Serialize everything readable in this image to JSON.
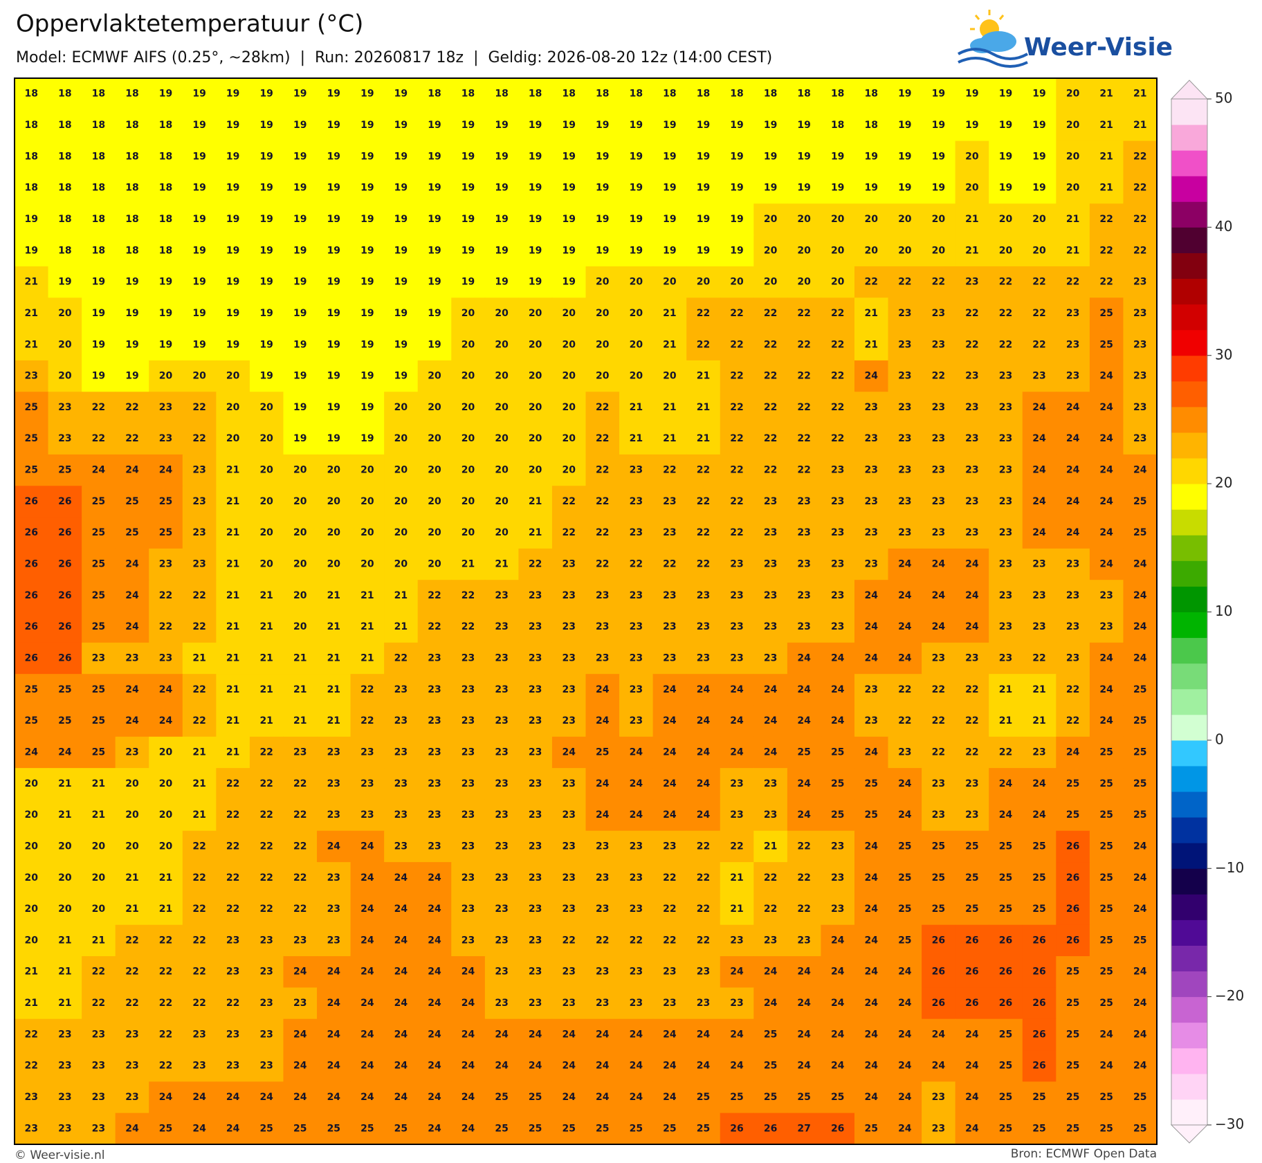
{
  "page": {
    "logo": "Weer-Visie",
    "credit": "© Weer-visie.nl",
    "source": "Bron: ECMWF Open Data"
  },
  "chart_data": {
    "type": "heatmap",
    "title": "Oppervlaktetemperatuur (°C)",
    "subtitle": "Model: ECMWF AIFS (0.25°, ~28km)  |  Run: 20260817 18z  |  Geldig: 2026-08-20 12z (14:00 CEST)",
    "values": [
      [
        18,
        18,
        18,
        18,
        19,
        19,
        19,
        19,
        19,
        19,
        19,
        19,
        18,
        18,
        18,
        18,
        18,
        18,
        18,
        18,
        18,
        18,
        18,
        18,
        18,
        18,
        19,
        19,
        19,
        19,
        19,
        20,
        21,
        21
      ],
      [
        18,
        18,
        18,
        18,
        18,
        19,
        19,
        19,
        19,
        19,
        19,
        19,
        19,
        19,
        19,
        19,
        19,
        19,
        19,
        19,
        19,
        19,
        19,
        19,
        18,
        18,
        19,
        19,
        19,
        19,
        19,
        20,
        21,
        21
      ],
      [
        18,
        18,
        18,
        18,
        18,
        19,
        19,
        19,
        19,
        19,
        19,
        19,
        19,
        19,
        19,
        19,
        19,
        19,
        19,
        19,
        19,
        19,
        19,
        19,
        19,
        19,
        19,
        19,
        20,
        19,
        19,
        20,
        21,
        22
      ],
      [
        18,
        18,
        18,
        18,
        18,
        19,
        19,
        19,
        19,
        19,
        19,
        19,
        19,
        19,
        19,
        19,
        19,
        19,
        19,
        19,
        19,
        19,
        19,
        19,
        19,
        19,
        19,
        19,
        20,
        19,
        19,
        20,
        21,
        22
      ],
      [
        19,
        18,
        18,
        18,
        18,
        19,
        19,
        19,
        19,
        19,
        19,
        19,
        19,
        19,
        19,
        19,
        19,
        19,
        19,
        19,
        19,
        19,
        20,
        20,
        20,
        20,
        20,
        20,
        21,
        20,
        20,
        21,
        22,
        22
      ],
      [
        19,
        18,
        18,
        18,
        18,
        19,
        19,
        19,
        19,
        19,
        19,
        19,
        19,
        19,
        19,
        19,
        19,
        19,
        19,
        19,
        19,
        19,
        20,
        20,
        20,
        20,
        20,
        20,
        21,
        20,
        20,
        21,
        22,
        22
      ],
      [
        21,
        19,
        19,
        19,
        19,
        19,
        19,
        19,
        19,
        19,
        19,
        19,
        19,
        19,
        19,
        19,
        19,
        20,
        20,
        20,
        20,
        20,
        20,
        20,
        20,
        22,
        22,
        22,
        23,
        22,
        22,
        22,
        22,
        23
      ],
      [
        21,
        20,
        19,
        19,
        19,
        19,
        19,
        19,
        19,
        19,
        19,
        19,
        19,
        20,
        20,
        20,
        20,
        20,
        20,
        21,
        22,
        22,
        22,
        22,
        22,
        21,
        23,
        23,
        22,
        22,
        22,
        23,
        25,
        23
      ],
      [
        21,
        20,
        19,
        19,
        19,
        19,
        19,
        19,
        19,
        19,
        19,
        19,
        19,
        20,
        20,
        20,
        20,
        20,
        20,
        21,
        22,
        22,
        22,
        22,
        22,
        21,
        23,
        23,
        22,
        22,
        22,
        23,
        25,
        23
      ],
      [
        23,
        20,
        19,
        19,
        20,
        20,
        20,
        19,
        19,
        19,
        19,
        19,
        20,
        20,
        20,
        20,
        20,
        20,
        20,
        20,
        21,
        22,
        22,
        22,
        22,
        24,
        23,
        22,
        23,
        23,
        23,
        23,
        24,
        23
      ],
      [
        25,
        23,
        22,
        22,
        23,
        22,
        20,
        20,
        19,
        19,
        19,
        20,
        20,
        20,
        20,
        20,
        20,
        22,
        21,
        21,
        21,
        22,
        22,
        22,
        22,
        23,
        23,
        23,
        23,
        23,
        24,
        24,
        24,
        23
      ],
      [
        25,
        23,
        22,
        22,
        23,
        22,
        20,
        20,
        19,
        19,
        19,
        20,
        20,
        20,
        20,
        20,
        20,
        22,
        21,
        21,
        21,
        22,
        22,
        22,
        22,
        23,
        23,
        23,
        23,
        23,
        24,
        24,
        24,
        23
      ],
      [
        25,
        25,
        24,
        24,
        24,
        23,
        21,
        20,
        20,
        20,
        20,
        20,
        20,
        20,
        20,
        20,
        20,
        22,
        23,
        22,
        22,
        22,
        22,
        22,
        23,
        23,
        23,
        23,
        23,
        23,
        24,
        24,
        24,
        24
      ],
      [
        26,
        26,
        25,
        25,
        25,
        23,
        21,
        20,
        20,
        20,
        20,
        20,
        20,
        20,
        20,
        21,
        22,
        22,
        23,
        23,
        22,
        22,
        23,
        23,
        23,
        23,
        23,
        23,
        23,
        23,
        24,
        24,
        24,
        25
      ],
      [
        26,
        26,
        25,
        25,
        25,
        23,
        21,
        20,
        20,
        20,
        20,
        20,
        20,
        20,
        20,
        21,
        22,
        22,
        23,
        23,
        22,
        22,
        23,
        23,
        23,
        23,
        23,
        23,
        23,
        23,
        24,
        24,
        24,
        25
      ],
      [
        26,
        26,
        25,
        24,
        23,
        23,
        21,
        20,
        20,
        20,
        20,
        20,
        20,
        21,
        21,
        22,
        23,
        22,
        22,
        22,
        22,
        23,
        23,
        23,
        23,
        23,
        24,
        24,
        24,
        23,
        23,
        23,
        24,
        24
      ],
      [
        26,
        26,
        25,
        24,
        22,
        22,
        21,
        21,
        20,
        21,
        21,
        21,
        22,
        22,
        23,
        23,
        23,
        23,
        23,
        23,
        23,
        23,
        23,
        23,
        23,
        24,
        24,
        24,
        24,
        23,
        23,
        23,
        23,
        24
      ],
      [
        26,
        26,
        25,
        24,
        22,
        22,
        21,
        21,
        20,
        21,
        21,
        21,
        22,
        22,
        23,
        23,
        23,
        23,
        23,
        23,
        23,
        23,
        23,
        23,
        23,
        24,
        24,
        24,
        24,
        23,
        23,
        23,
        23,
        24
      ],
      [
        26,
        26,
        23,
        23,
        23,
        21,
        21,
        21,
        21,
        21,
        21,
        22,
        23,
        23,
        23,
        23,
        23,
        23,
        23,
        23,
        23,
        23,
        23,
        24,
        24,
        24,
        24,
        23,
        23,
        23,
        22,
        23,
        24,
        24
      ],
      [
        25,
        25,
        25,
        24,
        24,
        22,
        21,
        21,
        21,
        21,
        22,
        23,
        23,
        23,
        23,
        23,
        23,
        24,
        23,
        24,
        24,
        24,
        24,
        24,
        24,
        23,
        22,
        22,
        22,
        21,
        21,
        22,
        24,
        25
      ],
      [
        25,
        25,
        25,
        24,
        24,
        22,
        21,
        21,
        21,
        21,
        22,
        23,
        23,
        23,
        23,
        23,
        23,
        24,
        23,
        24,
        24,
        24,
        24,
        24,
        24,
        23,
        22,
        22,
        22,
        21,
        21,
        22,
        24,
        25
      ],
      [
        24,
        24,
        25,
        23,
        20,
        21,
        21,
        22,
        23,
        23,
        23,
        23,
        23,
        23,
        23,
        23,
        24,
        25,
        24,
        24,
        24,
        24,
        24,
        25,
        25,
        24,
        23,
        22,
        22,
        22,
        23,
        24,
        25,
        25
      ],
      [
        20,
        21,
        21,
        20,
        20,
        21,
        22,
        22,
        22,
        23,
        23,
        23,
        23,
        23,
        23,
        23,
        23,
        24,
        24,
        24,
        24,
        23,
        23,
        24,
        25,
        25,
        24,
        23,
        23,
        24,
        24,
        25,
        25,
        25
      ],
      [
        20,
        21,
        21,
        20,
        20,
        21,
        22,
        22,
        22,
        23,
        23,
        23,
        23,
        23,
        23,
        23,
        23,
        24,
        24,
        24,
        24,
        23,
        23,
        24,
        25,
        25,
        24,
        23,
        23,
        24,
        24,
        25,
        25,
        25
      ],
      [
        20,
        20,
        20,
        20,
        20,
        22,
        22,
        22,
        22,
        24,
        24,
        23,
        23,
        23,
        23,
        23,
        23,
        23,
        23,
        23,
        22,
        22,
        21,
        22,
        23,
        24,
        25,
        25,
        25,
        25,
        25,
        26,
        25,
        24
      ],
      [
        20,
        20,
        20,
        21,
        21,
        22,
        22,
        22,
        22,
        23,
        24,
        24,
        24,
        23,
        23,
        23,
        23,
        23,
        23,
        22,
        22,
        21,
        22,
        22,
        23,
        24,
        25,
        25,
        25,
        25,
        25,
        26,
        25,
        24
      ],
      [
        20,
        20,
        20,
        21,
        21,
        22,
        22,
        22,
        22,
        23,
        24,
        24,
        24,
        23,
        23,
        23,
        23,
        23,
        23,
        22,
        22,
        21,
        22,
        22,
        23,
        24,
        25,
        25,
        25,
        25,
        25,
        26,
        25,
        24
      ],
      [
        20,
        21,
        21,
        22,
        22,
        22,
        23,
        23,
        23,
        23,
        24,
        24,
        24,
        23,
        23,
        23,
        22,
        22,
        22,
        22,
        22,
        23,
        23,
        23,
        24,
        24,
        25,
        26,
        26,
        26,
        26,
        26,
        25,
        25
      ],
      [
        21,
        21,
        22,
        22,
        22,
        22,
        23,
        23,
        24,
        24,
        24,
        24,
        24,
        24,
        23,
        23,
        23,
        23,
        23,
        23,
        23,
        24,
        24,
        24,
        24,
        24,
        24,
        26,
        26,
        26,
        26,
        25,
        25,
        24
      ],
      [
        21,
        21,
        22,
        22,
        22,
        22,
        22,
        23,
        23,
        24,
        24,
        24,
        24,
        24,
        23,
        23,
        23,
        23,
        23,
        23,
        23,
        23,
        24,
        24,
        24,
        24,
        24,
        26,
        26,
        26,
        26,
        25,
        25,
        24
      ],
      [
        22,
        23,
        23,
        23,
        22,
        23,
        23,
        23,
        24,
        24,
        24,
        24,
        24,
        24,
        24,
        24,
        24,
        24,
        24,
        24,
        24,
        24,
        25,
        24,
        24,
        24,
        24,
        24,
        24,
        25,
        26,
        25,
        24,
        24
      ],
      [
        22,
        23,
        23,
        23,
        22,
        23,
        23,
        23,
        24,
        24,
        24,
        24,
        24,
        24,
        24,
        24,
        24,
        24,
        24,
        24,
        24,
        24,
        25,
        24,
        24,
        24,
        24,
        24,
        24,
        25,
        26,
        25,
        24,
        24
      ],
      [
        23,
        23,
        23,
        23,
        24,
        24,
        24,
        24,
        24,
        24,
        24,
        24,
        24,
        24,
        25,
        25,
        24,
        24,
        24,
        24,
        25,
        25,
        25,
        25,
        25,
        24,
        24,
        23,
        24,
        25,
        25,
        25,
        25,
        25
      ],
      [
        23,
        23,
        23,
        24,
        25,
        24,
        24,
        25,
        25,
        25,
        25,
        25,
        24,
        24,
        25,
        25,
        25,
        25,
        25,
        25,
        25,
        26,
        26,
        27,
        26,
        25,
        24,
        23,
        24,
        25,
        25,
        25,
        25,
        25
      ]
    ],
    "colorbar_lim": [
      -30,
      50
    ],
    "colorbar_ticks": [
      {
        "value": -30,
        "label": "−30"
      },
      {
        "value": -20,
        "label": "−20"
      },
      {
        "value": -10,
        "label": "−10"
      },
      0,
      10,
      20,
      30,
      40,
      50
    ],
    "colorbar_colors": [
      "#fff0fa",
      "#ffd4f5",
      "#ffb4f0",
      "#e68ce6",
      "#c864d2",
      "#a046be",
      "#7828aa",
      "#500a96",
      "#32006e",
      "#14004b",
      "#001478",
      "#0032a0",
      "#0064c8",
      "#0096e6",
      "#32c8ff",
      "#d2ffd2",
      "#a0f0a0",
      "#78dc78",
      "#4bc84b",
      "#00b400",
      "#009600",
      "#3caa00",
      "#78be00",
      "#c8dc00",
      "#ffff00",
      "#ffd700",
      "#ffb400",
      "#ff8c00",
      "#ff5f00",
      "#ff3c00",
      "#f00000",
      "#d20000",
      "#b00000",
      "#82000f",
      "#500030",
      "#8c0064",
      "#c800a0",
      "#f050c8",
      "#f9a8da",
      "#fce4f4"
    ]
  }
}
